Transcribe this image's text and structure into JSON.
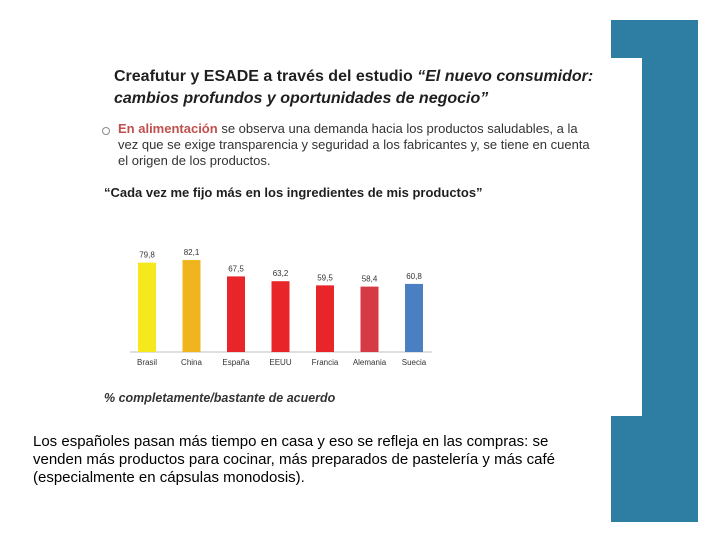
{
  "slide": {
    "title_line1_plain": "Creafutur y ESADE a través del estudio ",
    "title_line1_italic": "“El nuevo consumidor:",
    "title_line2_italic": "cambios profundos y oportunidades de negocio”",
    "bullet_highlight": "En alimentación",
    "bullet_line1_rest": " se observa una demanda hacia los productos saludables, a la",
    "bullet_line2": "vez que se exige transparencia y seguridad a los fabricantes y, se tiene en cuenta",
    "bullet_line3": "el origen de los productos.",
    "quote": "“Cada vez me fijo más en los ingredientes de mis productos”",
    "percent_caption": "% completamente/bastante de acuerdo"
  },
  "caption": {
    "line1": "Los españoles pasan más tiempo en casa y eso se refleja en las compras: se",
    "line2": "venden más productos para cocinar, más preparados de pastelería y más café",
    "line3": "(especialmente en cápsulas monodosis)."
  },
  "colors": {
    "accent_bar": "#2e7da3",
    "highlight": "#c0504d"
  },
  "chart_data": {
    "type": "bar",
    "categories": [
      "Brasil",
      "China",
      "España",
      "EEUU",
      "Francia",
      "Alemania",
      "Suecia"
    ],
    "values": [
      79.8,
      82.1,
      67.5,
      63.2,
      59.5,
      58.4,
      60.8
    ],
    "value_labels": [
      "79,8",
      "82,1",
      "67,5",
      "63,2",
      "59,5",
      "58,4",
      "60,8"
    ],
    "bar_colors": [
      "#f5e81c",
      "#f0b41f",
      "#e8262a",
      "#e8262a",
      "#e8262a",
      "#d63a44",
      "#4a7fc1"
    ],
    "ylabel": "% completamente/bastante de acuerdo",
    "ylim": [
      0,
      100
    ],
    "grid": false
  }
}
